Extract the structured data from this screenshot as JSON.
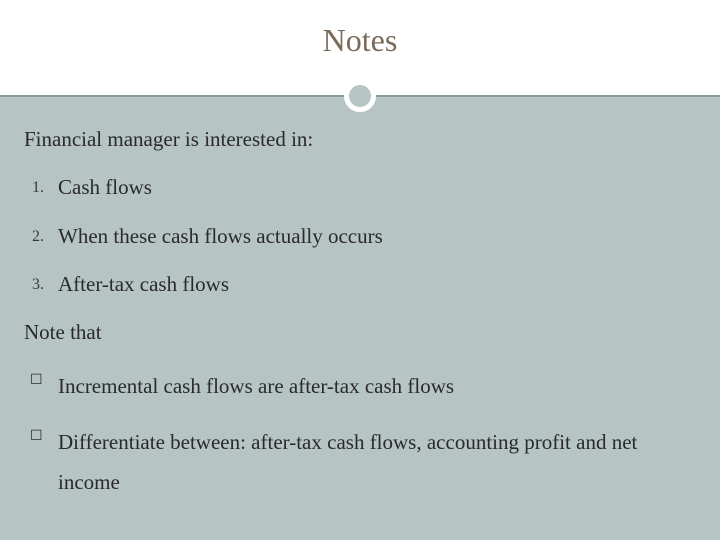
{
  "slide": {
    "title": "Notes",
    "background_color": "#b6c4c3",
    "header_band_color": "#ffffff",
    "title_color": "#7a6a5a",
    "title_fontsize": 32,
    "divider_color": "#8a9a99",
    "circle_border_color": "#ffffff",
    "text_color": "#2a2a2a",
    "body_fontsize": 21,
    "intro": "Financial manager is interested in:",
    "ordered_items": [
      {
        "num": "1.",
        "text": "Cash flows"
      },
      {
        "num": "2.",
        "text": "When these cash flows  actually occurs"
      },
      {
        "num": "3.",
        "text": "After-tax cash flows"
      }
    ],
    "note_label": "Note that",
    "bullet_glyph": "☐",
    "unordered_items": [
      {
        "text": "Incremental cash flows are after-tax cash flows"
      },
      {
        "text": "Differentiate between: after-tax cash flows, accounting profit and net income"
      }
    ]
  }
}
